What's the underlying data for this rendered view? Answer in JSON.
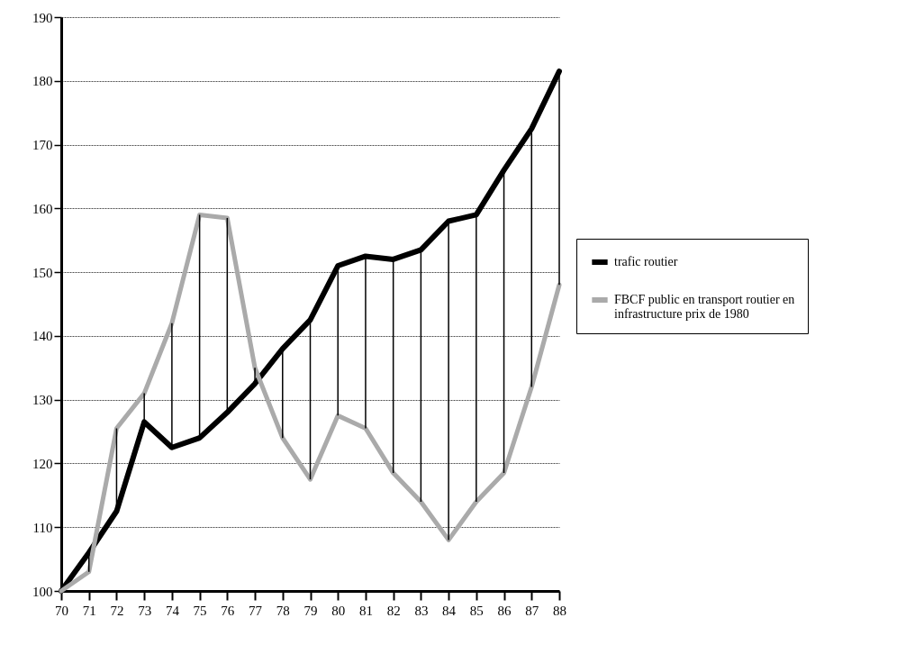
{
  "chart_data": {
    "type": "line",
    "categories": [
      "70",
      "71",
      "72",
      "73",
      "74",
      "75",
      "76",
      "77",
      "78",
      "79",
      "80",
      "81",
      "82",
      "83",
      "84",
      "85",
      "86",
      "87",
      "88"
    ],
    "series": [
      {
        "name": "trafic routier",
        "color": "#000000",
        "values": [
          100,
          106,
          112.5,
          126.5,
          122.5,
          124,
          128,
          132.5,
          138,
          142.5,
          151,
          152.5,
          152,
          153.5,
          158,
          159,
          166,
          172.5,
          181.5
        ],
        "errors": [
          null,
          [
            103,
            106
          ],
          [
            112.5,
            125.5
          ],
          [
            126.5,
            131
          ],
          [
            122.5,
            142
          ],
          [
            124,
            159
          ],
          [
            128,
            158.5
          ],
          [
            132.5,
            135
          ],
          [
            124,
            138
          ],
          [
            117.5,
            142.5
          ],
          [
            127.5,
            151
          ],
          [
            125.5,
            152.5
          ],
          [
            118.5,
            152
          ],
          [
            114,
            153.5
          ],
          [
            108,
            158
          ],
          [
            114,
            159
          ],
          [
            118.5,
            166
          ],
          [
            132,
            172.5
          ],
          [
            148,
            181.5
          ]
        ]
      },
      {
        "name": "FBCF public en transport routier en infrastructure prix de 1980",
        "color": "#aaaaaa",
        "values": [
          100,
          103,
          125.5,
          131,
          142,
          159,
          158.5,
          135,
          124,
          117.5,
          127.5,
          125.5,
          118.5,
          114,
          108,
          114,
          118.5,
          132,
          148
        ]
      }
    ],
    "ylim": [
      100,
      190
    ],
    "yticks": [
      100,
      110,
      120,
      130,
      140,
      150,
      160,
      170,
      180,
      190
    ],
    "grid": "y",
    "legend": "right",
    "marker": "none",
    "line_style": "solid"
  }
}
